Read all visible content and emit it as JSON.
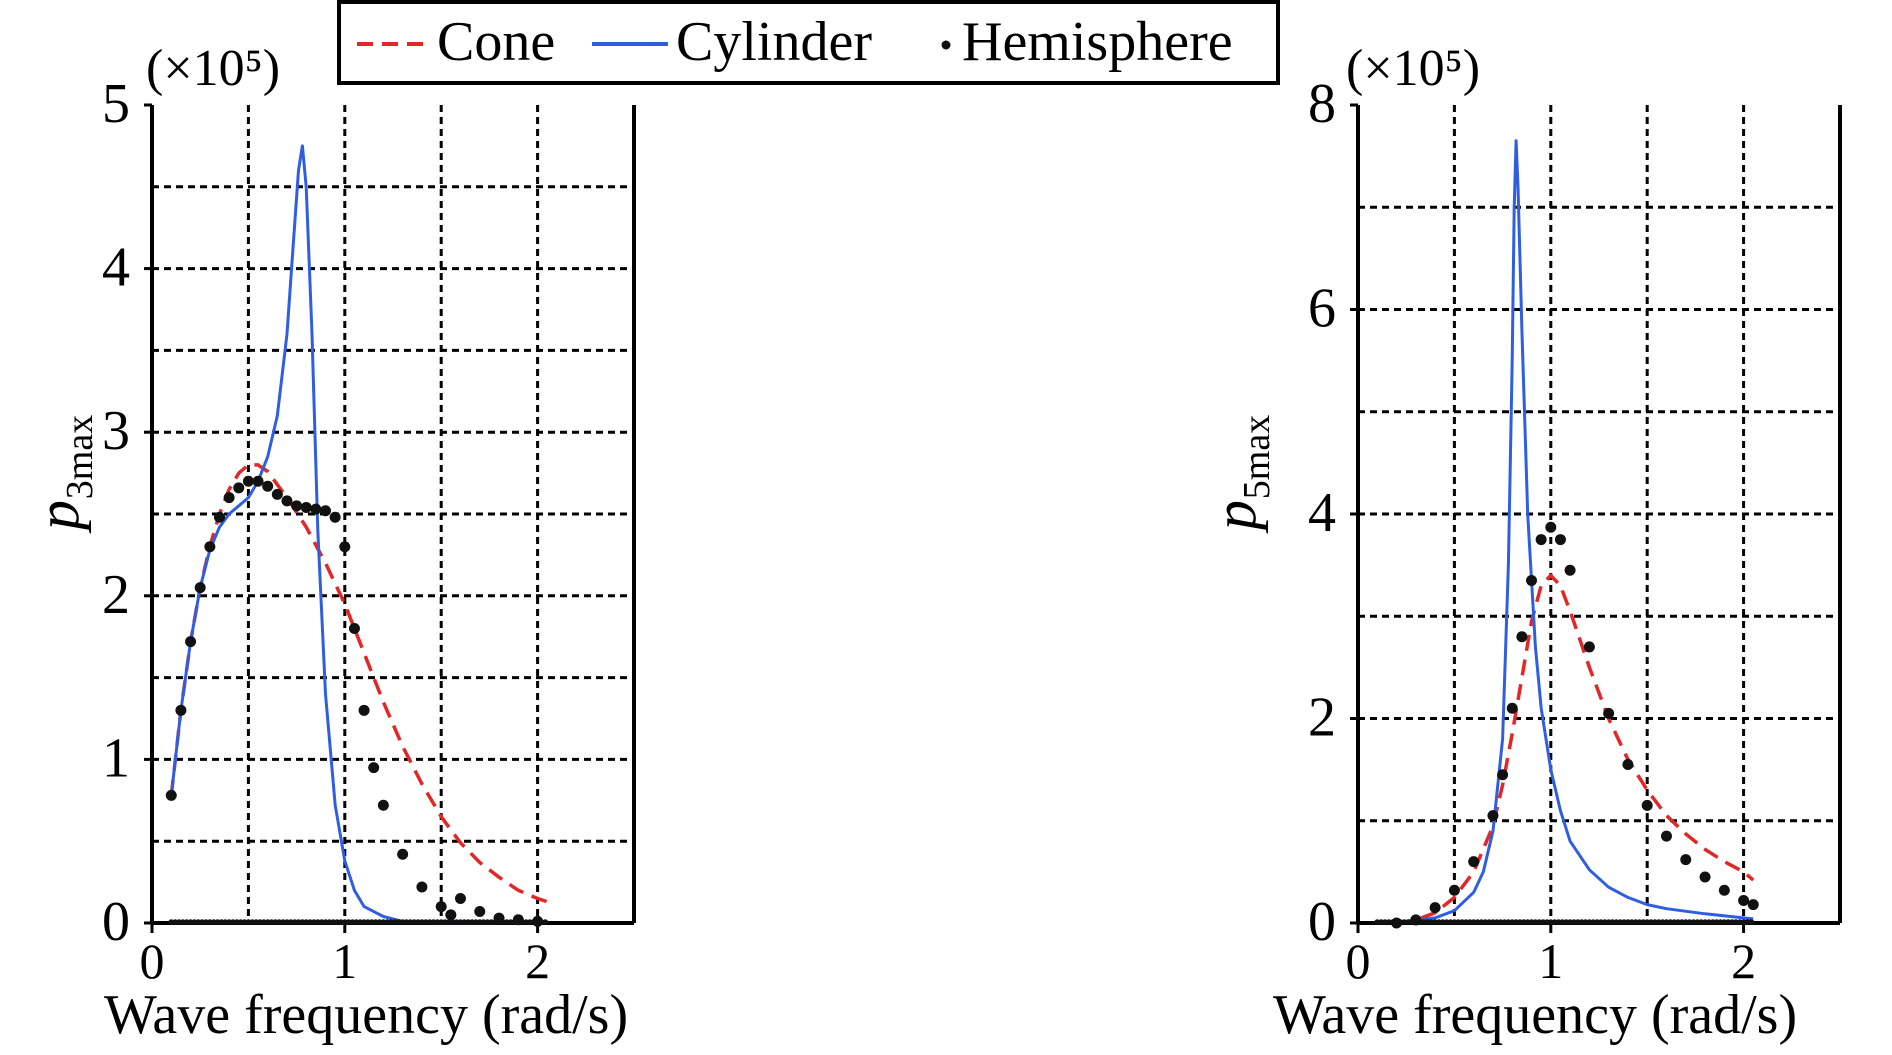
{
  "legend": {
    "entries": [
      "Cone",
      "Cylinder",
      "Hemisphere"
    ]
  },
  "colors": {
    "cone": "#e32626",
    "cylinder": "#2f5fe0",
    "hemisphere": "#111111",
    "grid": "#000000"
  },
  "chart_data": [
    {
      "type": "line",
      "title": "",
      "xlabel": "Wave frequency (rad/s)",
      "ylabel_main": "p",
      "ylabel_sub": "3max",
      "multiplier_label": "(×10⁵)",
      "xlim": [
        0,
        2.5
      ],
      "ylim": [
        0,
        5
      ],
      "xticks": [
        0,
        1,
        2
      ],
      "yticks": [
        0,
        1,
        2,
        3,
        4,
        5
      ],
      "grid": true,
      "legend_placement": "top-center",
      "series": [
        {
          "name": "Cone",
          "style": "dashed",
          "x": [
            0.1,
            0.15,
            0.2,
            0.25,
            0.3,
            0.35,
            0.4,
            0.45,
            0.5,
            0.55,
            0.6,
            0.65,
            0.7,
            0.8,
            0.9,
            1.0,
            1.1,
            1.2,
            1.3,
            1.4,
            1.5,
            1.6,
            1.7,
            1.8,
            1.9,
            2.0,
            2.05
          ],
          "y": [
            0.78,
            1.3,
            1.72,
            2.05,
            2.3,
            2.5,
            2.65,
            2.75,
            2.8,
            2.8,
            2.76,
            2.68,
            2.6,
            2.42,
            2.2,
            1.95,
            1.65,
            1.35,
            1.08,
            0.85,
            0.65,
            0.49,
            0.37,
            0.28,
            0.2,
            0.15,
            0.13
          ]
        },
        {
          "name": "Cylinder",
          "style": "solid",
          "x": [
            0.1,
            0.15,
            0.2,
            0.25,
            0.3,
            0.35,
            0.4,
            0.45,
            0.5,
            0.55,
            0.6,
            0.65,
            0.7,
            0.73,
            0.76,
            0.78,
            0.8,
            0.83,
            0.86,
            0.9,
            0.95,
            1.0,
            1.05,
            1.1,
            1.2,
            1.3,
            1.5,
            1.8
          ],
          "y": [
            0.78,
            1.3,
            1.72,
            2.05,
            2.28,
            2.42,
            2.5,
            2.55,
            2.6,
            2.7,
            2.85,
            3.1,
            3.6,
            4.1,
            4.6,
            4.75,
            4.5,
            3.6,
            2.4,
            1.4,
            0.72,
            0.38,
            0.2,
            0.1,
            0.04,
            0.01,
            0.0,
            0.0
          ]
        },
        {
          "name": "Hemisphere",
          "style": "dotted",
          "x": [
            0.1,
            0.15,
            0.2,
            0.25,
            0.3,
            0.35,
            0.4,
            0.45,
            0.5,
            0.55,
            0.6,
            0.65,
            0.7,
            0.75,
            0.8,
            0.85,
            0.9,
            0.95,
            1.0,
            1.05,
            1.1,
            1.15,
            1.2,
            1.3,
            1.4,
            1.5,
            1.55,
            1.6,
            1.7,
            1.8,
            1.9,
            2.0
          ],
          "y": [
            0.78,
            1.3,
            1.72,
            2.05,
            2.3,
            2.48,
            2.6,
            2.66,
            2.7,
            2.7,
            2.67,
            2.62,
            2.58,
            2.55,
            2.54,
            2.53,
            2.52,
            2.48,
            2.3,
            1.8,
            1.3,
            0.95,
            0.72,
            0.42,
            0.22,
            0.1,
            0.05,
            0.15,
            0.07,
            0.03,
            0.02,
            0.01
          ]
        }
      ]
    },
    {
      "type": "line",
      "title": "",
      "xlabel": "Wave frequency (rad/s)",
      "ylabel_main": "p",
      "ylabel_sub": "5max",
      "multiplier_label": "(×10⁵)",
      "xlim": [
        0,
        2.5
      ],
      "ylim": [
        0,
        8
      ],
      "xticks": [
        0,
        1,
        2
      ],
      "yticks": [
        0,
        2,
        4,
        6,
        8
      ],
      "grid": true,
      "series": [
        {
          "name": "Cone",
          "style": "dashed",
          "x": [
            0.2,
            0.3,
            0.4,
            0.5,
            0.6,
            0.7,
            0.75,
            0.8,
            0.85,
            0.9,
            0.95,
            1.0,
            1.05,
            1.1,
            1.2,
            1.3,
            1.4,
            1.5,
            1.6,
            1.7,
            1.8,
            1.9,
            2.0,
            2.05
          ],
          "y": [
            0.0,
            0.03,
            0.1,
            0.25,
            0.5,
            0.95,
            1.35,
            1.85,
            2.4,
            2.95,
            3.3,
            3.4,
            3.3,
            3.05,
            2.5,
            2.0,
            1.6,
            1.3,
            1.05,
            0.87,
            0.72,
            0.6,
            0.5,
            0.42
          ]
        },
        {
          "name": "Cylinder",
          "style": "solid",
          "x": [
            0.2,
            0.4,
            0.5,
            0.6,
            0.65,
            0.7,
            0.75,
            0.78,
            0.8,
            0.81,
            0.82,
            0.83,
            0.85,
            0.88,
            0.92,
            0.95,
            1.0,
            1.05,
            1.1,
            1.2,
            1.3,
            1.4,
            1.5,
            1.6,
            1.8,
            2.0,
            2.05
          ],
          "y": [
            0.0,
            0.05,
            0.12,
            0.3,
            0.5,
            0.9,
            1.8,
            3.5,
            5.5,
            7.0,
            7.65,
            7.2,
            5.8,
            4.0,
            2.7,
            2.1,
            1.5,
            1.1,
            0.8,
            0.52,
            0.35,
            0.25,
            0.18,
            0.14,
            0.09,
            0.05,
            0.04
          ]
        },
        {
          "name": "Hemisphere",
          "style": "dotted",
          "x": [
            0.2,
            0.3,
            0.4,
            0.5,
            0.6,
            0.7,
            0.75,
            0.8,
            0.85,
            0.9,
            0.95,
            1.0,
            1.05,
            1.1,
            1.2,
            1.3,
            1.4,
            1.5,
            1.6,
            1.7,
            1.8,
            1.9,
            2.0,
            2.05
          ],
          "y": [
            0.0,
            0.03,
            0.15,
            0.32,
            0.6,
            1.05,
            1.45,
            2.1,
            2.8,
            3.35,
            3.75,
            3.87,
            3.75,
            3.45,
            2.7,
            2.05,
            1.55,
            1.15,
            0.85,
            0.62,
            0.45,
            0.32,
            0.22,
            0.18
          ]
        }
      ]
    }
  ]
}
